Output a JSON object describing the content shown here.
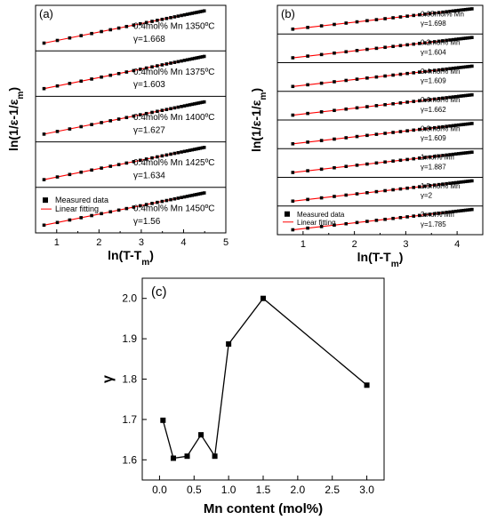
{
  "figure": {
    "panel_a_tag": "(a)",
    "panel_b_tag": "(b)",
    "panel_c_tag": "(c)"
  },
  "chart_data": [
    {
      "id": "a",
      "type": "scatter",
      "title": "",
      "xlabel": "ln(T-T_m)",
      "ylabel": "ln(1/ε-1/ε_m)",
      "xlim": [
        0.5,
        5
      ],
      "xticks": [
        "1",
        "2",
        "3",
        "4",
        "5"
      ],
      "x_range": [
        0.7,
        4.5
      ],
      "grid": false,
      "legend_position": "bottom-left",
      "legend": {
        "measured": "Measured data",
        "fit": "Linear fitting"
      },
      "colors": {
        "measured": "#000000",
        "fit": "#ff0000"
      },
      "subpanels": [
        {
          "label": "0.4mol% Mn 1350ºC",
          "gamma": "γ=1.668"
        },
        {
          "label": "0.4mol% Mn 1375ºC",
          "gamma": "γ=1.603"
        },
        {
          "label": "0.4mol% Mn 1400ºC",
          "gamma": "γ=1.627"
        },
        {
          "label": "0.4mol% Mn 1425ºC",
          "gamma": "γ=1.634"
        },
        {
          "label": "0.4mol% Mn 1450ºC",
          "gamma": "γ=1.56"
        }
      ]
    },
    {
      "id": "b",
      "type": "scatter",
      "title": "",
      "xlabel": "ln(T-T_m)",
      "ylabel": "ln(1/ε-1/ε_m)",
      "xlim": [
        0.5,
        4.5
      ],
      "xticks": [
        "1",
        "2",
        "3",
        "4"
      ],
      "x_range": [
        0.8,
        4.3
      ],
      "grid": false,
      "legend_position": "bottom-left",
      "legend": {
        "measured": "Measured data",
        "fit": "Linear fitting"
      },
      "colors": {
        "measured": "#000000",
        "fit": "#ff0000"
      },
      "subpanels": [
        {
          "label": "0.05mol% Mn",
          "gamma": "γ=1.698"
        },
        {
          "label": "0.2mol% Mn",
          "gamma": "γ=1.604"
        },
        {
          "label": "0.4mol% Mn",
          "gamma": "γ=1.609"
        },
        {
          "label": "0.6mol% Mn",
          "gamma": "γ=1.662"
        },
        {
          "label": "0.8mol% Mn",
          "gamma": "γ=1.609"
        },
        {
          "label": "1mol% Mn",
          "gamma": "γ=1.887"
        },
        {
          "label": "1.5mol% Mn",
          "gamma": "γ=2"
        },
        {
          "label": "3mol% Mn",
          "gamma": "γ=1.785"
        }
      ]
    },
    {
      "id": "c",
      "type": "line",
      "title": "",
      "xlabel": "Mn content (mol%)",
      "ylabel": "γ",
      "xlim": [
        -0.25,
        3.25
      ],
      "ylim": [
        1.55,
        2.05
      ],
      "xticks": [
        0.0,
        0.5,
        1.0,
        1.5,
        2.0,
        2.5,
        3.0
      ],
      "xtick_labels": [
        "0.0",
        "0.5",
        "1.0",
        "1.5",
        "2.0",
        "2.5",
        "3.0"
      ],
      "yticks": [
        1.6,
        1.7,
        1.8,
        1.9,
        2.0
      ],
      "ytick_labels": [
        "1.6",
        "1.7",
        "1.8",
        "1.9",
        "2.0"
      ],
      "grid": false,
      "series": [
        {
          "x": [
            0.05,
            0.2,
            0.4,
            0.6,
            0.8,
            1.0,
            1.5,
            3.0
          ],
          "values": [
            1.698,
            1.604,
            1.609,
            1.662,
            1.609,
            1.887,
            2.0,
            1.785
          ]
        }
      ]
    }
  ]
}
